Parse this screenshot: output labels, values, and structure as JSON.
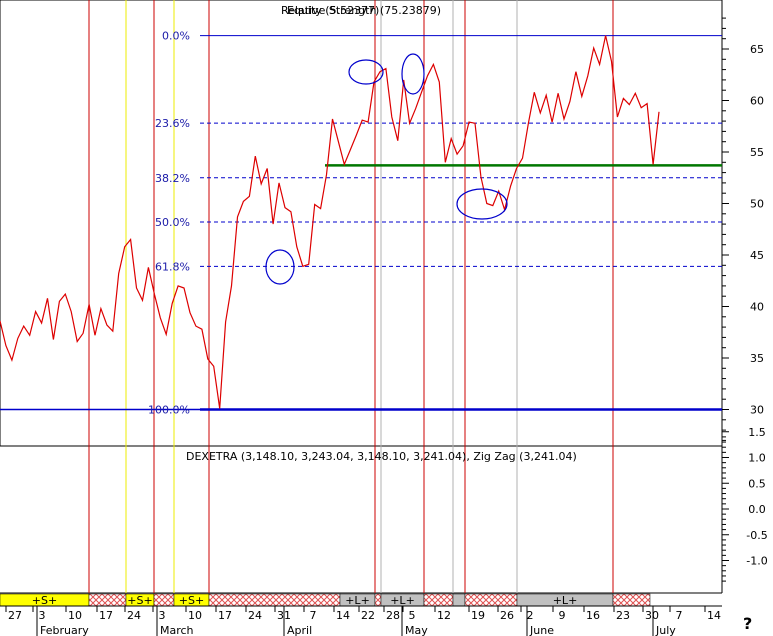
{
  "header": {
    "title_main": "Relative Strength (75.23879)",
    "title_overlay": "Equity (5.52377)",
    "indicator_label": "DEXETRA (3,148.10, 3,243.04, 3,148.10, 3,241.04), Zig Zag (3,241.04)"
  },
  "help_glyph": "?",
  "colors": {
    "price_line": "#dd0000",
    "fib_lines": "#0000cc",
    "support_line": "#007700",
    "ellipse": "#0000cc",
    "vline_red": "#cc0000",
    "vline_yellow": "#eeee00",
    "signal_yellow": "#ffff00",
    "signal_grey": "#c0c0c0",
    "signal_hatch": "#e05050"
  },
  "chart_data": {
    "type": "line",
    "upper_axis": {
      "ticks": [
        "30",
        "35",
        "40",
        "45",
        "50",
        "55",
        "60",
        "65"
      ],
      "ylim": [
        26,
        69
      ]
    },
    "lower_axis": {
      "ticks": [
        "1.5",
        "1.0",
        "0.5",
        "0.0",
        "-0.5",
        "-1.0"
      ],
      "ylim": [
        -1.6,
        1.75
      ]
    },
    "fib_levels": [
      {
        "label": "0.0%",
        "value": 66.3
      },
      {
        "label": "23.6%",
        "value": 57.8
      },
      {
        "label": "38.2%",
        "value": 52.5
      },
      {
        "label": "50.0%",
        "value": 48.2
      },
      {
        "label": "61.8%",
        "value": 43.9
      },
      {
        "label": "100.0%",
        "value": 30.0
      }
    ],
    "support_level": 53.7,
    "date_ticks": [
      "27",
      "3",
      "10",
      "17",
      "24",
      "3",
      "10",
      "17",
      "24",
      "31",
      "7",
      "14",
      "22",
      "28",
      "5",
      "12",
      "19",
      "26",
      "2",
      "9",
      "16",
      "23",
      "30",
      "7",
      "14"
    ],
    "month_labels": [
      "February",
      "March",
      "April",
      "May",
      "June",
      "July"
    ],
    "series": [
      {
        "values": [
          38.6,
          36.2,
          34.8,
          36.9,
          38.1,
          37.2,
          39.5,
          38.4,
          40.8,
          36.8,
          40.5,
          41.2,
          39.5,
          36.6,
          37.4,
          40.2,
          37.2,
          39.8,
          38.2,
          37.6,
          43.2,
          45.8,
          46.5,
          41.8,
          40.6,
          43.8,
          41.2,
          38.9,
          37.3,
          40.3,
          42.0,
          41.8,
          39.4,
          38.1,
          37.8,
          34.9,
          34.2,
          30.1,
          38.5,
          42.0,
          48.7,
          50.2,
          50.7,
          54.6,
          51.9,
          53.4,
          48.0,
          52.0,
          49.6,
          49.2,
          45.8,
          43.9,
          44.1,
          49.9,
          49.5,
          52.8,
          58.2,
          56.0,
          53.8,
          55.2,
          56.6,
          58.1,
          57.9,
          61.8,
          62.8,
          63.1,
          58.4,
          56.1,
          62.0,
          57.8,
          59.2,
          60.8,
          62.4,
          63.5,
          61.8,
          54.0,
          56.3,
          54.8,
          55.6,
          57.9,
          57.8,
          52.6,
          50.0,
          49.8,
          51.2,
          49.4,
          51.7,
          53.4,
          54.4,
          57.8,
          60.8,
          58.8,
          60.5,
          57.9,
          60.7,
          58.2,
          59.9,
          62.8,
          60.4,
          62.4,
          65.1,
          63.5,
          66.3,
          63.8,
          58.4,
          60.2,
          59.6,
          60.7,
          59.3,
          59.7,
          53.8,
          58.9
        ]
      }
    ]
  },
  "signal_bar": {
    "segments": [
      {
        "type": "yellow",
        "label": "+S+",
        "start": 0,
        "end": 89
      },
      {
        "type": "hatch",
        "label": "",
        "start": 89,
        "end": 126
      },
      {
        "type": "yellow",
        "label": "+S+",
        "start": 126,
        "end": 154
      },
      {
        "type": "hatch",
        "label": "",
        "start": 154,
        "end": 174
      },
      {
        "type": "yellow",
        "label": "+S+",
        "start": 174,
        "end": 209
      },
      {
        "type": "hatch",
        "label": "",
        "start": 209,
        "end": 340
      },
      {
        "type": "grey",
        "label": "+L+",
        "start": 340,
        "end": 375
      },
      {
        "type": "hatch",
        "label": "",
        "start": 375,
        "end": 381
      },
      {
        "type": "grey",
        "label": "+L+",
        "start": 381,
        "end": 424
      },
      {
        "type": "hatch",
        "label": "",
        "start": 424,
        "end": 453
      },
      {
        "type": "grey",
        "label": "",
        "start": 453,
        "end": 465
      },
      {
        "type": "hatch",
        "label": "",
        "start": 465,
        "end": 517
      },
      {
        "type": "grey",
        "label": "+L+",
        "start": 517,
        "end": 613
      },
      {
        "type": "hatch",
        "label": "",
        "start": 613,
        "end": 650
      }
    ]
  }
}
